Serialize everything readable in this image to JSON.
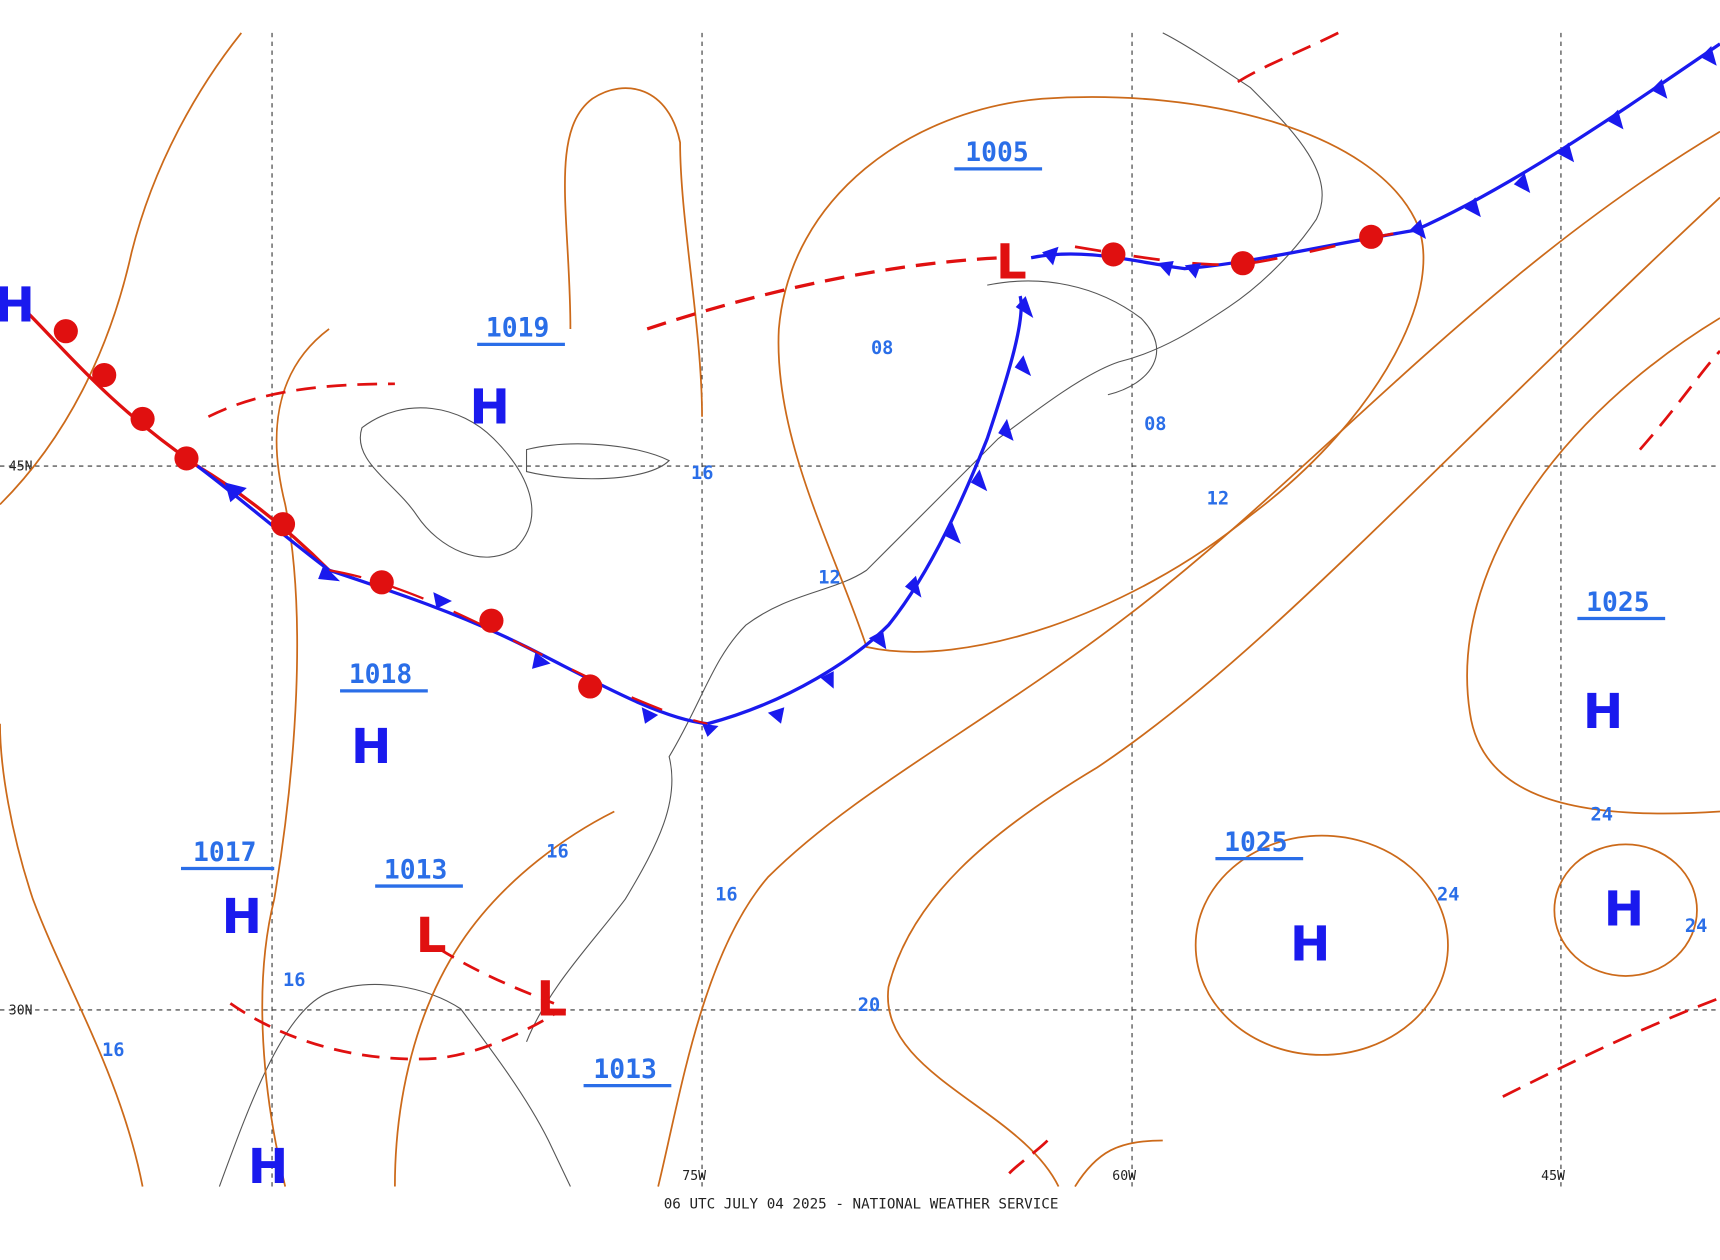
{
  "map": {
    "footer": "06 UTC JULY 04 2025 - NATIONAL WEATHER SERVICE",
    "grid_labels": [
      "45N",
      "30N",
      "75W",
      "60W",
      "45W"
    ],
    "centers": [
      "H",
      "H",
      "H",
      "H",
      "H",
      "H",
      "H",
      "H",
      "L",
      "L",
      "L"
    ],
    "pressures": [
      "1005",
      "1019",
      "1018",
      "1017",
      "1013",
      "1013",
      "1025",
      "1025"
    ],
    "isobar_labels": [
      "08",
      "08",
      "16",
      "12",
      "12",
      "16",
      "16",
      "16",
      "16",
      "20",
      "24",
      "24",
      "24"
    ]
  }
}
